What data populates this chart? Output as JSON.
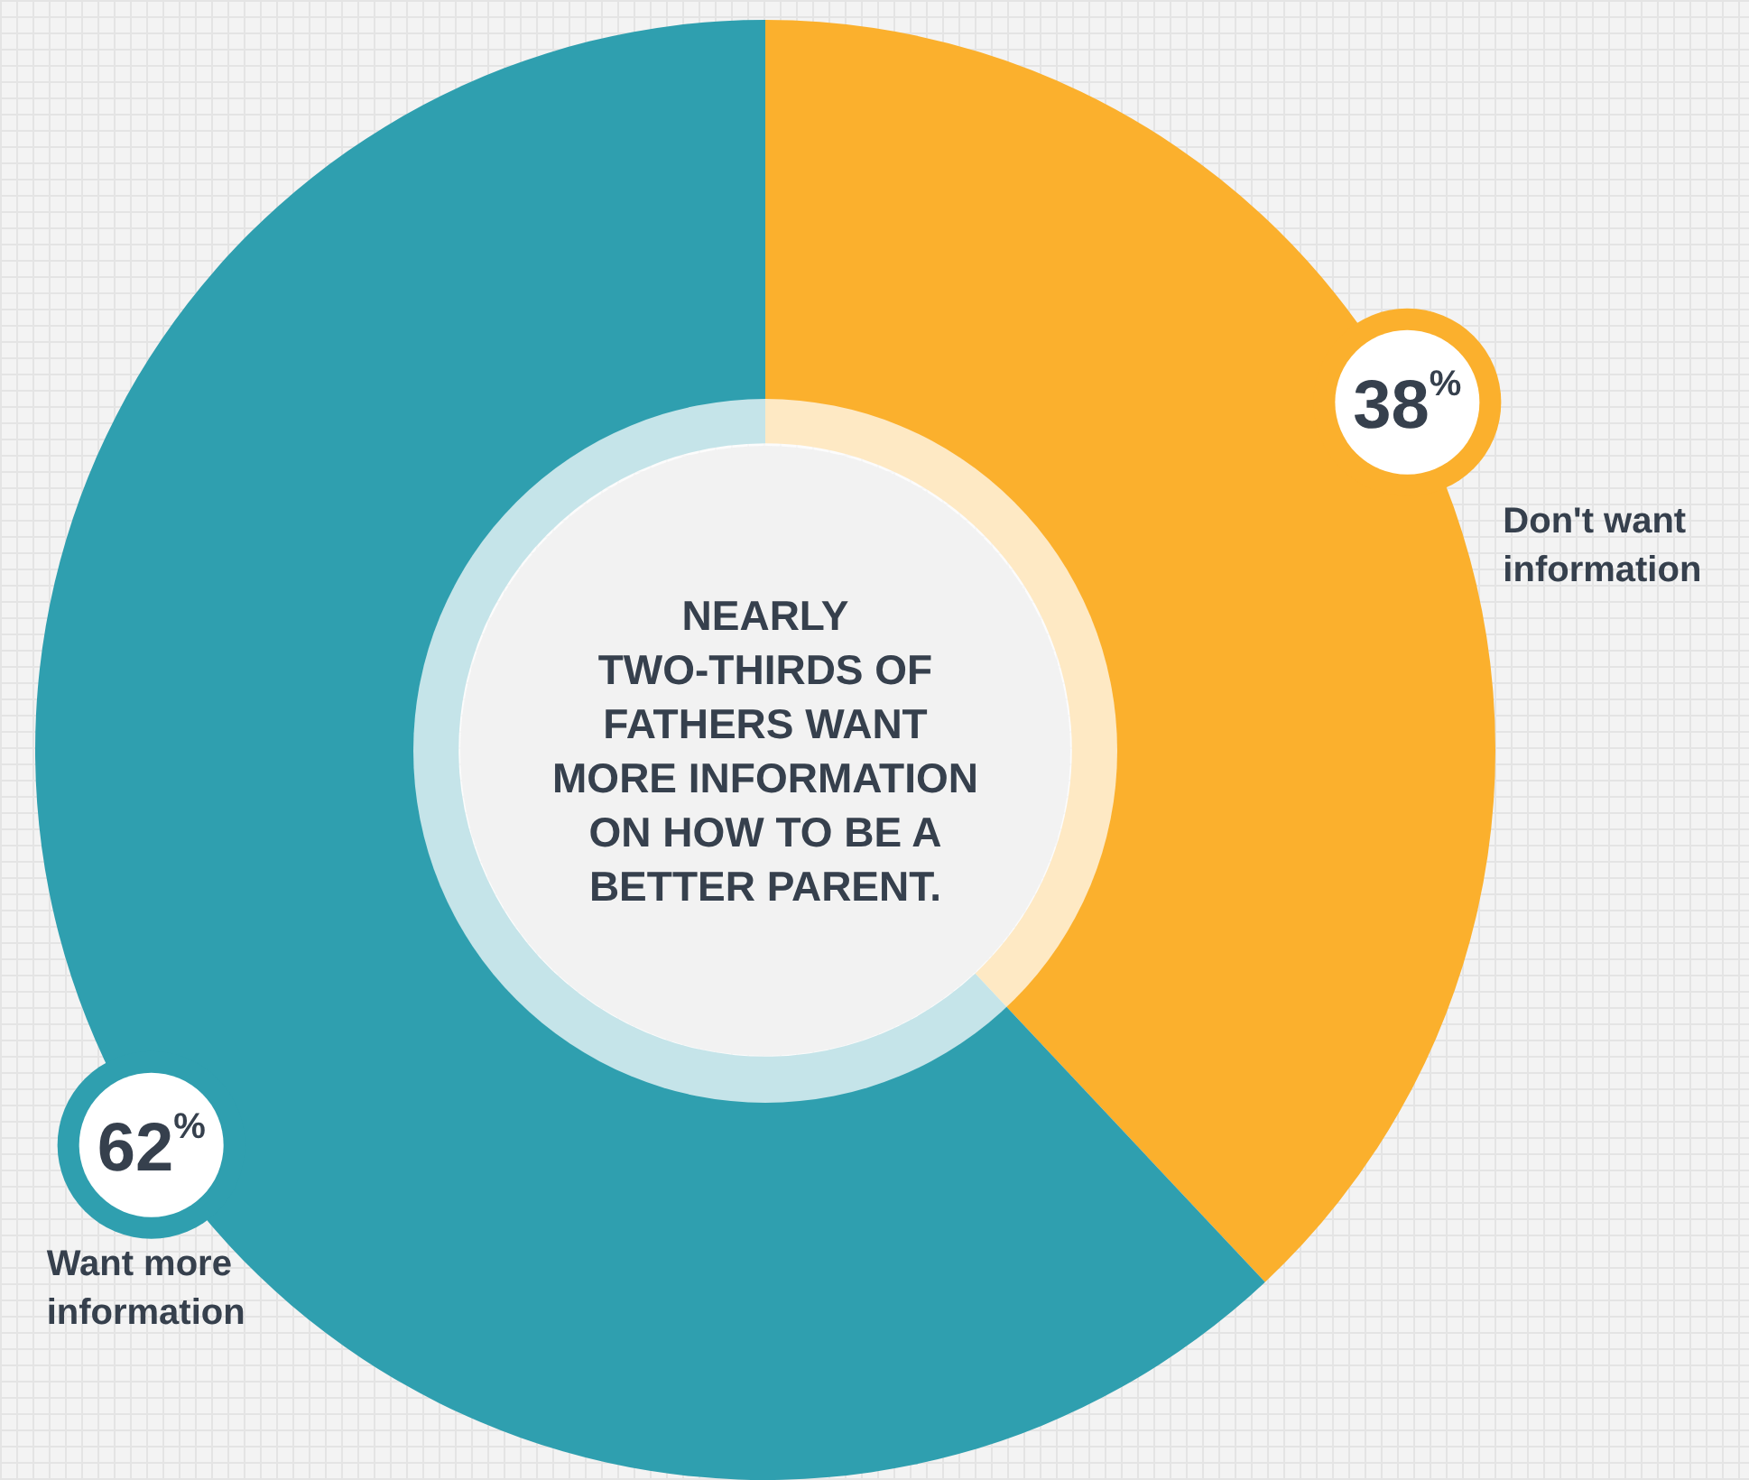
{
  "chart_data": {
    "type": "donut",
    "title": "NEARLY\nTWO-THIRDS OF\nFATHERS WANT\nMORE INFORMATION\nON HOW TO BE A\nBETTER PARENT.",
    "categories": [
      "Don't want\ninformation",
      "Want more\ninformation"
    ],
    "values": [
      38,
      62
    ],
    "colors": [
      "#fbb02d",
      "#2f9faf"
    ],
    "value_labels": [
      "38%",
      "62%"
    ],
    "legend": false
  }
}
